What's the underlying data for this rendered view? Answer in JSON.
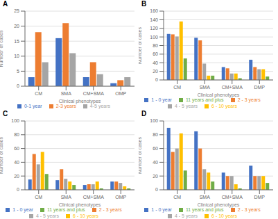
{
  "chart_data": [
    {
      "type": "bar",
      "title": "A",
      "categories": [
        "CM",
        "SMA",
        "CM+SMA",
        "OMP"
      ],
      "series": [
        {
          "name": "0-1 year",
          "color": "#4472C4",
          "values": [
            3,
            16,
            3,
            1
          ]
        },
        {
          "name": "2-3 years",
          "color": "#ED7D31",
          "values": [
            18,
            21,
            8,
            2
          ]
        },
        {
          "name": "4-5 years",
          "color": "#A5A5A5",
          "values": [
            8,
            11,
            4,
            3
          ]
        }
      ],
      "xlabel": "Clinical phenotypes",
      "ylabel": "Number of cases",
      "ylim": [
        0,
        25
      ],
      "yticks": [
        0,
        5,
        10,
        15,
        20,
        25
      ],
      "grid": true,
      "legend": "bottom"
    },
    {
      "type": "bar",
      "title": "B",
      "categories": [
        "CM",
        "SMA",
        "CM+SMA",
        "DMP"
      ],
      "series": [
        {
          "name": "1 - 0 year",
          "color": "#4472C4",
          "values": [
            107,
            98,
            30,
            47
          ]
        },
        {
          "name": "2 - 3 years",
          "color": "#ED7D31",
          "values": [
            106,
            92,
            27,
            30
          ]
        },
        {
          "name": "4 - 5 years",
          "color": "#A5A5A5",
          "values": [
            101,
            38,
            15,
            25
          ]
        },
        {
          "name": "6 - 10 years",
          "color": "#FFC000",
          "values": [
            136,
            10,
            15,
            25
          ]
        },
        {
          "name": "11 years and plus",
          "color": "#70AD47",
          "values": [
            50,
            10,
            4,
            8
          ]
        }
      ],
      "xlabel": "Clinical phenotypes",
      "ylabel": "Number of cases",
      "ylim": [
        0,
        160
      ],
      "yticks": [
        0,
        20,
        40,
        60,
        80,
        100,
        120,
        140,
        160
      ],
      "grid": true,
      "legend": "bottom"
    },
    {
      "type": "bar",
      "title": "C",
      "categories": [
        "CM",
        "SMA",
        "CM+SMA",
        "OMP"
      ],
      "series": [
        {
          "name": "1 - 0 year",
          "color": "#4472C4",
          "values": [
            15,
            14,
            7,
            12
          ]
        },
        {
          "name": "2 - 3 years",
          "color": "#ED7D31",
          "values": [
            52,
            30,
            8,
            12
          ]
        },
        {
          "name": "4 - 5 years",
          "color": "#A5A5A5",
          "values": [
            37,
            16,
            8,
            10
          ]
        },
        {
          "name": "6 - 10 years",
          "color": "#FFC000",
          "values": [
            55,
            12,
            12,
            5
          ]
        },
        {
          "name": "11 years and plus",
          "color": "#70AD47",
          "values": [
            23,
            7,
            2,
            2
          ]
        }
      ],
      "xlabel": "Clinical phenotypes",
      "ylabel": "Number of cases",
      "ylim": [
        0,
        100
      ],
      "yticks": [
        0,
        20,
        40,
        60,
        80,
        100
      ],
      "grid": true,
      "legend": "bottom"
    },
    {
      "type": "bar",
      "title": "D",
      "categories": [
        "CM",
        "SMA",
        "CM+SMA",
        "DMP"
      ],
      "series": [
        {
          "name": "1 - 0 year",
          "color": "#4472C4",
          "values": [
            90,
            85,
            25,
            35
          ]
        },
        {
          "name": "2 - 3 years",
          "color": "#ED7D31",
          "values": [
            55,
            60,
            20,
            20
          ]
        },
        {
          "name": "4 - 5 years",
          "color": "#A5A5A5",
          "values": [
            60,
            30,
            20,
            20
          ]
        },
        {
          "name": "6 - 10 years",
          "color": "#FFC000",
          "values": [
            82,
            25,
            8,
            20
          ]
        },
        {
          "name": "11 years and plus",
          "color": "#70AD47",
          "values": [
            28,
            12,
            2,
            10
          ]
        }
      ],
      "xlabel": "Clinical phenotypes",
      "ylabel": "Number of cases",
      "ylim": [
        0,
        100
      ],
      "yticks": [
        0,
        20,
        40,
        60,
        80,
        100
      ],
      "grid": true,
      "legend": "bottom"
    }
  ]
}
